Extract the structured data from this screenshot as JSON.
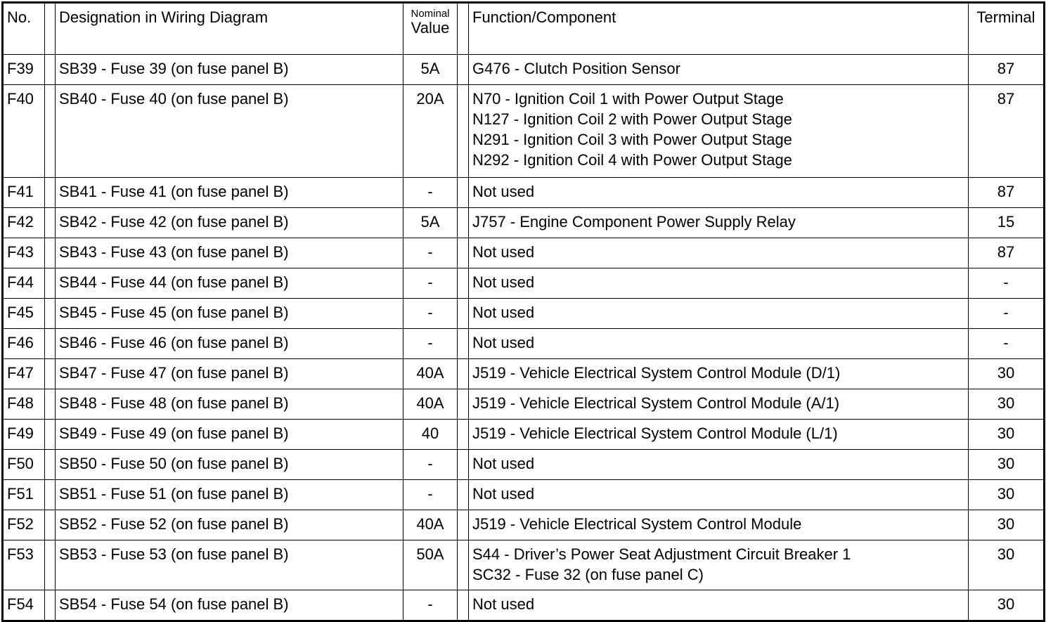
{
  "header": {
    "no": "No.",
    "designation": "Designation in Wiring Diagram",
    "nominal_small": "Nominal",
    "nominal_value": "Value",
    "function": "Function/Component",
    "terminal": "Terminal"
  },
  "rows": [
    {
      "no": "F39",
      "designation": "SB39 - Fuse 39 (on fuse panel B)",
      "value": "5A",
      "function": [
        "G476 - Clutch Position Sensor"
      ],
      "terminal": "87"
    },
    {
      "no": "F40",
      "designation": "SB40 - Fuse 40 (on fuse panel B)",
      "value": "20A",
      "function": [
        "N70 - Ignition Coil 1 with Power Output Stage",
        "N127 - Ignition Coil 2 with Power Output Stage",
        "N291 - Ignition Coil 3 with Power Output Stage",
        "N292 - Ignition Coil 4 with Power Output Stage"
      ],
      "terminal": "87"
    },
    {
      "no": "F41",
      "designation": "SB41 - Fuse 41 (on fuse panel B)",
      "value": "-",
      "function": [
        "Not used"
      ],
      "terminal": "87"
    },
    {
      "no": "F42",
      "designation": "SB42 - Fuse 42 (on fuse panel B)",
      "value": "5A",
      "function": [
        "J757 - Engine Component Power Supply Relay"
      ],
      "terminal": "15"
    },
    {
      "no": "F43",
      "designation": "SB43 - Fuse 43 (on fuse panel B)",
      "value": "-",
      "function": [
        "Not used"
      ],
      "terminal": "87"
    },
    {
      "no": "F44",
      "designation": "SB44 - Fuse 44 (on fuse panel B)",
      "value": "-",
      "function": [
        "Not used"
      ],
      "terminal": "-"
    },
    {
      "no": "F45",
      "designation": "SB45 - Fuse 45 (on fuse panel B)",
      "value": "-",
      "function": [
        "Not used"
      ],
      "terminal": "-"
    },
    {
      "no": "F46",
      "designation": "SB46 - Fuse 46 (on fuse panel B)",
      "value": "-",
      "function": [
        "Not used"
      ],
      "terminal": "-"
    },
    {
      "no": "F47",
      "designation": "SB47 - Fuse 47 (on fuse panel B)",
      "value": "40A",
      "function": [
        "J519 - Vehicle Electrical System Control Module (D/1)"
      ],
      "terminal": "30"
    },
    {
      "no": "F48",
      "designation": "SB48 - Fuse 48 (on fuse panel B)",
      "value": "40A",
      "function": [
        "J519 - Vehicle Electrical System Control Module (A/1)"
      ],
      "terminal": "30"
    },
    {
      "no": "F49",
      "designation": "SB49 - Fuse 49 (on fuse panel B)",
      "value": "40",
      "function": [
        "J519 - Vehicle Electrical System Control Module (L/1)"
      ],
      "terminal": "30"
    },
    {
      "no": "F50",
      "designation": "SB50 - Fuse 50 (on fuse panel B)",
      "value": "-",
      "function": [
        "Not used"
      ],
      "terminal": "30"
    },
    {
      "no": "F51",
      "designation": "SB51 - Fuse 51 (on fuse panel B)",
      "value": "-",
      "function": [
        "Not used"
      ],
      "terminal": "30"
    },
    {
      "no": "F52",
      "designation": "SB52 - Fuse 52 (on fuse panel B)",
      "value": "40A",
      "function": [
        "J519 - Vehicle Electrical System Control Module"
      ],
      "terminal": "30"
    },
    {
      "no": "F53",
      "designation": "SB53 - Fuse 53 (on fuse panel B)",
      "value": "50A",
      "function": [
        "S44 - Driver’s Power Seat Adjustment Circuit Breaker 1",
        "SC32 - Fuse 32 (on fuse panel C)"
      ],
      "terminal": "30"
    },
    {
      "no": "F54",
      "designation": "SB54 - Fuse 54 (on fuse panel B)",
      "value": "-",
      "function": [
        "Not used"
      ],
      "terminal": "30"
    }
  ]
}
